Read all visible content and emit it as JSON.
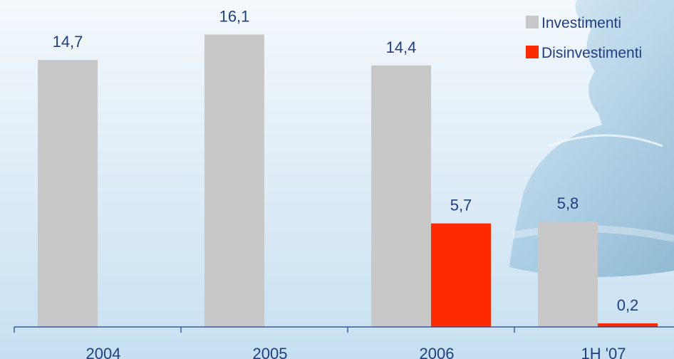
{
  "chart_data": {
    "type": "bar",
    "categories": [
      "2004",
      "2005",
      "2006",
      "1H '07"
    ],
    "series": [
      {
        "name": "Investimenti",
        "values": [
          14.7,
          16.1,
          14.4,
          5.8
        ],
        "labels": [
          "14,7",
          "16,1",
          "14,4",
          "5,8"
        ]
      },
      {
        "name": "Disinvestimenti",
        "values": [
          null,
          null,
          5.7,
          0.2
        ],
        "labels": [
          "",
          "",
          "5,7",
          "0,2"
        ]
      }
    ],
    "colors": {
      "Investimenti": "#c8c8c8",
      "Disinvestimenti": "#ff2a00"
    },
    "legend_position": "top-right",
    "ylim": [
      0,
      18
    ]
  }
}
